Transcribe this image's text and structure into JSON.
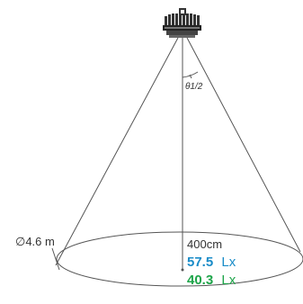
{
  "diagram": {
    "half_angle_label": "θ1/2",
    "diameter_label": "∅4.6 m",
    "distance_label": "400cm",
    "center_lux": {
      "value": "57.5",
      "unit": "Lx",
      "color": "#1a8cc8"
    },
    "edge_lux": {
      "value": "40.3",
      "unit": "Lx",
      "color": "#1ea54a"
    },
    "line_color": "#555555",
    "fixture_color": "#333333"
  }
}
